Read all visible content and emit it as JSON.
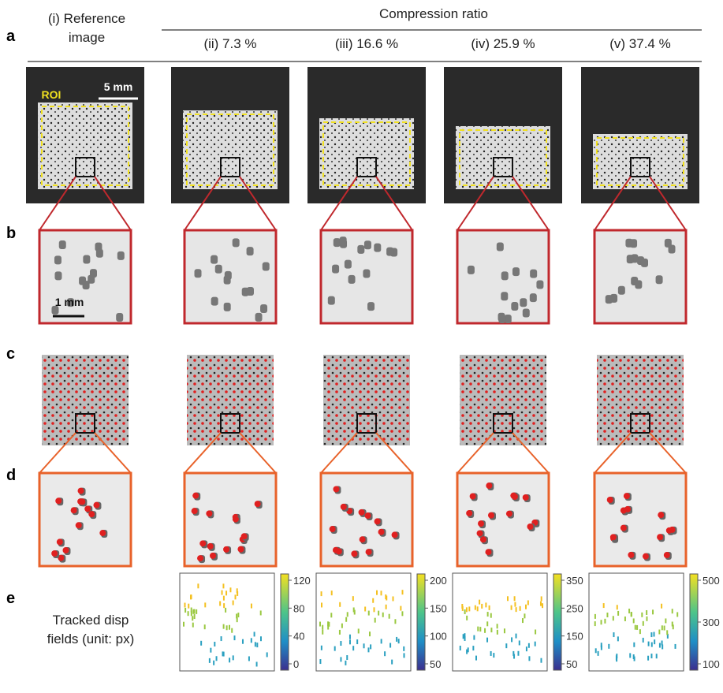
{
  "panel_labels": [
    "a",
    "b",
    "c",
    "d",
    "e"
  ],
  "header": {
    "reference": "(i) Reference image",
    "group": "Compression ratio",
    "columns": [
      "(ii) 7.3 %",
      "(iii) 16.6 %",
      "(iv) 25.9 %",
      "(v) 37.4 %"
    ]
  },
  "annotations": {
    "roi": "ROI",
    "scale_large": "5 mm",
    "scale_small": "1 mm"
  },
  "row_e": {
    "label": "Tracked disp fields (unit: px)",
    "colorbars": [
      {
        "ticks": [
          0,
          40,
          80,
          120
        ]
      },
      {
        "ticks": [
          50,
          100,
          150,
          200
        ]
      },
      {
        "ticks": [
          50,
          150,
          250,
          350
        ]
      },
      {
        "ticks": [
          100,
          300,
          500
        ]
      }
    ]
  }
}
